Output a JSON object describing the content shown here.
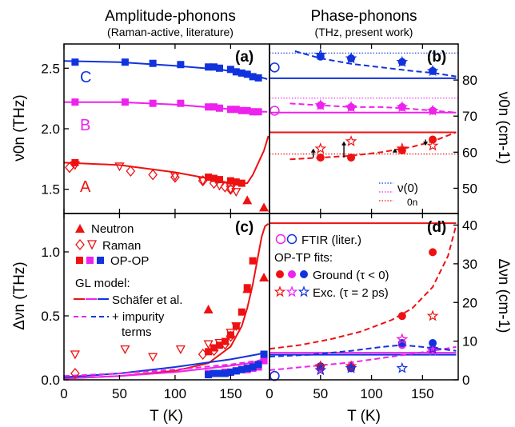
{
  "titles": {
    "left": "Amplitude-phonons",
    "left_sub": "(Raman-active, literature)",
    "right": "Phase-phonons",
    "right_sub": "(THz, present work)"
  },
  "axes": {
    "x_label": "T (K)",
    "y_left_top": "ν0n (THz)",
    "y_left_bottom": "Δνn (THz)",
    "y_right_top": "ν0n (cm-1)",
    "y_right_bottom": "Δνn (cm-1)",
    "x_ticks_left": [
      "0",
      "50",
      "100",
      "150"
    ],
    "x_ticks_right": [
      "0",
      "50",
      "100",
      "150"
    ],
    "y_ticks_left_top": [
      "1.5",
      "2.0",
      "2.5"
    ],
    "y_ticks_left_bottom": [
      "0.0",
      "0.5",
      "1.0"
    ],
    "y_ticks_right_top": [
      "50",
      "60",
      "70",
      "80"
    ],
    "y_ticks_right_bottom": [
      "0",
      "10",
      "20",
      "30",
      "40"
    ]
  },
  "panel_tags": [
    "(a)",
    "(b)",
    "(c)",
    "(d)"
  ],
  "mode_labels": [
    "A",
    "B",
    "C"
  ],
  "legend_c": {
    "neutron": "Neutron",
    "raman": "Raman",
    "opop": "OP-OP",
    "gl_model": "GL model:",
    "schafer": "Schäfer et al.",
    "impurity_1": "+ impurity",
    "impurity_2": "terms"
  },
  "legend_b": {
    "nu0": "ν(0)",
    "nu0_sub": "0n"
  },
  "legend_d": {
    "ftir": "FTIR (liter.)",
    "optp": "OP-TP fits:",
    "ground": "Ground (τ < 0)",
    "exc": "Exc. (τ = 2 ps)"
  },
  "colors": {
    "A": "#ee1111",
    "B": "#ee22ee",
    "C": "#1133dd"
  },
  "chart_data": [
    {
      "panel": "a",
      "type": "scatter",
      "title": "Amplitude-phonons",
      "xlabel": "T (K)",
      "ylabel": "ν0n (THz)",
      "xlim": [
        0,
        185
      ],
      "ylim": [
        1.3,
        2.7
      ],
      "series": [
        {
          "name": "C",
          "marker": "square-filled",
          "x": [
            10,
            55,
            80,
            105,
            130,
            135,
            140,
            150,
            155,
            160,
            165,
            170,
            175
          ],
          "y": [
            2.55,
            2.55,
            2.54,
            2.53,
            2.51,
            2.51,
            2.5,
            2.49,
            2.47,
            2.46,
            2.45,
            2.43,
            2.42
          ]
        },
        {
          "name": "B",
          "marker": "square-filled",
          "x": [
            10,
            55,
            80,
            105,
            130,
            135,
            140,
            150,
            155,
            160,
            165,
            170,
            175
          ],
          "y": [
            2.22,
            2.22,
            2.21,
            2.21,
            2.18,
            2.18,
            2.17,
            2.16,
            2.16,
            2.15,
            2.15,
            2.14,
            2.14
          ]
        },
        {
          "name": "A OP-OP",
          "marker": "square-filled",
          "x": [
            10,
            130,
            135,
            140,
            150,
            155,
            160
          ],
          "y": [
            1.72,
            1.6,
            1.59,
            1.58,
            1.57,
            1.56,
            1.55
          ]
        },
        {
          "name": "A Raman diamond",
          "marker": "diamond-open",
          "x": [
            5,
            60,
            80,
            100,
            125,
            135,
            145,
            150
          ],
          "y": [
            1.68,
            1.65,
            1.62,
            1.6,
            1.57,
            1.55,
            1.52,
            1.5
          ]
        },
        {
          "name": "A Raman triangle",
          "marker": "triangle-down-open",
          "x": [
            10,
            50,
            100,
            125,
            140,
            150,
            155
          ],
          "y": [
            1.7,
            1.69,
            1.61,
            1.57,
            1.53,
            1.5,
            1.48
          ]
        },
        {
          "name": "A Neutron",
          "marker": "triangle-up-filled",
          "x": [
            165,
            180
          ],
          "y": [
            1.41,
            1.35
          ]
        }
      ],
      "lines": [
        {
          "name": "C fit",
          "x": [
            0,
            50,
            100,
            140,
            160,
            175,
            183
          ],
          "y": [
            2.56,
            2.55,
            2.52,
            2.49,
            2.46,
            2.43,
            2.41
          ]
        },
        {
          "name": "B fit",
          "x": [
            0,
            50,
            100,
            140,
            160,
            175,
            183
          ],
          "y": [
            2.22,
            2.22,
            2.2,
            2.17,
            2.15,
            2.14,
            2.14
          ]
        },
        {
          "name": "A fit",
          "x": [
            0,
            50,
            100,
            130,
            150,
            165,
            170,
            175,
            180,
            184
          ],
          "y": [
            1.72,
            1.7,
            1.64,
            1.59,
            1.55,
            1.55,
            1.62,
            1.72,
            1.82,
            1.94
          ]
        }
      ]
    },
    {
      "panel": "b",
      "type": "scatter",
      "title": "Phase-phonons",
      "xlabel": "T (K)",
      "ylabel": "ν0n (cm-1)",
      "xlim": [
        0,
        185
      ],
      "ylim": [
        43,
        90
      ],
      "series": [
        {
          "name": "C FTIR",
          "marker": "circle-open",
          "x": [
            5
          ],
          "y": [
            83.5
          ]
        },
        {
          "name": "C Ground",
          "marker": "circle-filled",
          "x": [
            50,
            80,
            130,
            160
          ],
          "y": [
            86.5,
            86.0,
            85.0,
            82.5
          ]
        },
        {
          "name": "C Exc.",
          "marker": "star-open",
          "x": [
            50,
            80,
            130,
            160
          ],
          "y": [
            87.0,
            86.0,
            85.0,
            82.5
          ]
        },
        {
          "name": "B FTIR",
          "marker": "circle-open",
          "x": [
            5
          ],
          "y": [
            71.5
          ]
        },
        {
          "name": "B Ground",
          "marker": "circle-filled",
          "x": [
            50,
            80,
            130,
            160
          ],
          "y": [
            73.0,
            72.5,
            72.5,
            71.5
          ]
        },
        {
          "name": "B Exc.",
          "marker": "star-open",
          "x": [
            50,
            80,
            130,
            160
          ],
          "y": [
            73.0,
            72.5,
            72.5,
            71.5
          ]
        },
        {
          "name": "A Ground",
          "marker": "circle-filled",
          "x": [
            50,
            80,
            130,
            160
          ],
          "y": [
            58.5,
            58.5,
            60.5,
            63.5
          ]
        },
        {
          "name": "A Exc.",
          "marker": "star-open",
          "x": [
            50,
            80,
            130,
            160
          ],
          "y": [
            61.0,
            63.0,
            61.0,
            61.8
          ]
        }
      ],
      "lines": [
        {
          "name": "C GL",
          "style": "solid",
          "x": [
            0,
            183
          ],
          "y": [
            80.5,
            80.5
          ]
        },
        {
          "name": "C impurity",
          "style": "dashed",
          "x": [
            25,
            50,
            80,
            110,
            140,
            160,
            183
          ],
          "y": [
            88.0,
            86.0,
            84.5,
            83.5,
            82.5,
            82.0,
            81.0
          ]
        },
        {
          "name": "B GL",
          "style": "solid",
          "x": [
            0,
            183
          ],
          "y": [
            71.0,
            71.0
          ]
        },
        {
          "name": "B impurity",
          "style": "dashed",
          "x": [
            20,
            50,
            80,
            110,
            140,
            160,
            183
          ],
          "y": [
            73.5,
            73.0,
            72.5,
            72.5,
            72.0,
            71.5,
            71.0
          ]
        },
        {
          "name": "A GL",
          "style": "solid",
          "x": [
            0,
            183
          ],
          "y": [
            65.5,
            65.5
          ]
        },
        {
          "name": "A impurity",
          "style": "dashed",
          "x": [
            20,
            50,
            80,
            110,
            140,
            160,
            183
          ],
          "y": [
            58.0,
            58.5,
            59.0,
            60.0,
            61.5,
            63.0,
            65.5
          ]
        },
        {
          "name": "ν(0)0n C",
          "style": "dotted",
          "x": [
            0,
            185
          ],
          "y": [
            87.5,
            87.5
          ]
        },
        {
          "name": "ν(0)0n B",
          "style": "dotted",
          "x": [
            0,
            185
          ],
          "y": [
            75.0,
            75.0
          ]
        },
        {
          "name": "ν(0)0n A",
          "style": "dotted",
          "x": [
            0,
            185
          ],
          "y": [
            59.5,
            59.5
          ]
        }
      ],
      "annotations": [
        {
          "type": "arrows",
          "x": [
            50,
            80,
            130,
            160
          ]
        }
      ]
    },
    {
      "panel": "c",
      "type": "scatter",
      "xlabel": "T (K)",
      "ylabel": "Δνn (THz)",
      "xlim": [
        0,
        185
      ],
      "ylim": [
        0,
        1.3
      ],
      "series": [
        {
          "name": "Neutron",
          "marker": "triangle-up-filled",
          "x": [
            130,
            165,
            180
          ],
          "y": [
            0.55,
            0.71,
            0.8
          ]
        },
        {
          "name": "Raman diamond",
          "marker": "diamond-open",
          "x": [
            10,
            125,
            135,
            145,
            150
          ],
          "y": [
            0.05,
            0.2,
            0.23,
            0.28,
            0.34
          ]
        },
        {
          "name": "Raman triangle",
          "marker": "triangle-down-open",
          "x": [
            10,
            55,
            80,
            105,
            130,
            140,
            150,
            155
          ],
          "y": [
            0.2,
            0.24,
            0.18,
            0.24,
            0.28,
            0.29,
            0.37,
            0.42
          ]
        },
        {
          "name": "OP-OP A",
          "marker": "square-filled",
          "x": [
            130,
            135,
            140,
            145,
            150,
            155,
            160,
            165,
            170
          ],
          "y": [
            0.22,
            0.25,
            0.27,
            0.3,
            0.35,
            0.42,
            0.53,
            0.72,
            0.93
          ]
        },
        {
          "name": "OP-OP B",
          "marker": "square-filled",
          "x": [
            130,
            135,
            140,
            145,
            150,
            155,
            160,
            165,
            170,
            175,
            180
          ],
          "y": [
            0.05,
            0.05,
            0.05,
            0.06,
            0.06,
            0.07,
            0.08,
            0.08,
            0.09,
            0.1,
            0.15
          ]
        },
        {
          "name": "OP-OP C",
          "marker": "square-filled",
          "x": [
            130,
            135,
            140,
            145,
            150,
            155,
            160,
            165,
            170,
            175,
            180
          ],
          "y": [
            0.04,
            0.05,
            0.05,
            0.05,
            0.06,
            0.07,
            0.08,
            0.09,
            0.1,
            0.12,
            0.2
          ]
        }
      ],
      "lines": [
        {
          "name": "A Schäfer et al.",
          "style": "solid",
          "x": [
            0,
            50,
            100,
            130,
            150,
            160,
            165,
            170,
            175,
            178,
            181,
            184
          ],
          "y": [
            0.01,
            0.03,
            0.07,
            0.13,
            0.26,
            0.42,
            0.56,
            0.75,
            0.98,
            1.12,
            1.2,
            1.22
          ]
        },
        {
          "name": "B Schäfer et al.",
          "style": "solid",
          "x": [
            0,
            50,
            100,
            150,
            175,
            183
          ],
          "y": [
            0.01,
            0.03,
            0.06,
            0.11,
            0.14,
            0.16
          ]
        },
        {
          "name": "C Schäfer et al.",
          "style": "solid",
          "x": [
            0,
            50,
            100,
            150,
            175,
            183
          ],
          "y": [
            0.02,
            0.05,
            0.1,
            0.16,
            0.2,
            0.22
          ]
        },
        {
          "name": "B + impurity terms",
          "style": "dashed",
          "x": [
            0,
            50,
            100,
            150,
            175,
            183
          ],
          "y": [
            0.03,
            0.05,
            0.08,
            0.12,
            0.15,
            0.17
          ]
        }
      ]
    },
    {
      "panel": "d",
      "type": "scatter",
      "xlabel": "T (K)",
      "ylabel": "Δνn (cm-1)",
      "xlim": [
        0,
        185
      ],
      "ylim": [
        0,
        43
      ],
      "series": [
        {
          "name": "FTIR (liter.) B",
          "marker": "circle-open",
          "x": [
            5
          ],
          "y": [
            1.0
          ]
        },
        {
          "name": "FTIR (liter.) C",
          "marker": "circle-open",
          "x": [
            5
          ],
          "y": [
            1.0
          ]
        },
        {
          "name": "Ground A",
          "marker": "circle-filled",
          "x": [
            50,
            80,
            130,
            160
          ],
          "y": [
            3.5,
            3.0,
            16.5,
            33.0
          ]
        },
        {
          "name": "Ground B",
          "marker": "circle-filled",
          "x": [
            50,
            80,
            130,
            160
          ],
          "y": [
            3.0,
            3.5,
            9.0,
            8.0
          ]
        },
        {
          "name": "Ground C",
          "marker": "circle-filled",
          "x": [
            50,
            80,
            130,
            160
          ],
          "y": [
            3.5,
            3.0,
            9.5,
            9.5
          ]
        },
        {
          "name": "Exc. A",
          "marker": "star-open",
          "x": [
            50,
            80,
            130,
            160
          ],
          "y": [
            3.5,
            3.5,
            10.5,
            16.5
          ]
        },
        {
          "name": "Exc. B",
          "marker": "star-open",
          "x": [
            50,
            80,
            130,
            160
          ],
          "y": [
            2.5,
            3.0,
            10.5,
            7.5
          ]
        },
        {
          "name": "Exc. C",
          "marker": "star-open",
          "x": [
            50,
            80,
            130,
            160
          ],
          "y": [
            2.5,
            3.0,
            3.0,
            8.0
          ]
        }
      ],
      "lines": [
        {
          "name": "A GL",
          "style": "solid",
          "x": [
            0,
            183
          ],
          "y": [
            40.5,
            40.5
          ]
        },
        {
          "name": "B GL",
          "style": "solid",
          "x": [
            0,
            183
          ],
          "y": [
            7.0,
            7.0
          ]
        },
        {
          "name": "C GL",
          "style": "solid",
          "x": [
            0,
            183
          ],
          "y": [
            6.5,
            6.5
          ]
        },
        {
          "name": "A impurity",
          "style": "dashed",
          "x": [
            0,
            30,
            60,
            90,
            120,
            140,
            160,
            175,
            183
          ],
          "y": [
            8.0,
            9.0,
            10.5,
            12.5,
            15.5,
            18.5,
            24.0,
            32.0,
            40.0
          ]
        },
        {
          "name": "B impurity",
          "style": "dashed",
          "x": [
            0,
            40,
            80,
            120,
            160,
            183
          ],
          "y": [
            2.5,
            3.5,
            4.5,
            6.0,
            7.5,
            8.5
          ]
        },
        {
          "name": "C impurity",
          "style": "dashed",
          "x": [
            0,
            40,
            80,
            110,
            130,
            150,
            183
          ],
          "y": [
            6.0,
            6.5,
            7.5,
            8.5,
            9.0,
            8.5,
            7.5
          ]
        }
      ]
    }
  ]
}
